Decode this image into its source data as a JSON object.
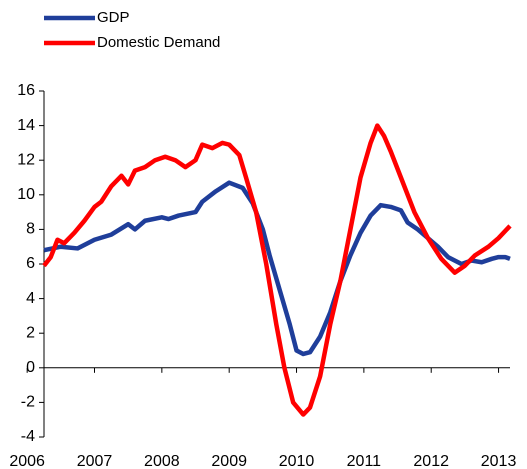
{
  "chart_data": {
    "type": "line",
    "series": [
      {
        "name": "GDP",
        "color": "#1f3e9a",
        "x": [
          2006.25,
          2006.5,
          2006.75,
          2007.0,
          2007.25,
          2007.5,
          2007.6,
          2007.75,
          2008.0,
          2008.1,
          2008.25,
          2008.5,
          2008.6,
          2008.8,
          2009.0,
          2009.2,
          2009.35,
          2009.5,
          2009.6,
          2009.75,
          2009.9,
          2010.0,
          2010.1,
          2010.2,
          2010.35,
          2010.5,
          2010.65,
          2010.8,
          2010.95,
          2011.1,
          2011.25,
          2011.4,
          2011.55,
          2011.65,
          2011.8,
          2011.95,
          2012.1,
          2012.25,
          2012.45,
          2012.6,
          2012.75,
          2012.9,
          2013.0,
          2013.1,
          2013.17
        ],
        "values": [
          6.8,
          7.0,
          6.9,
          7.4,
          7.7,
          8.3,
          8.0,
          8.5,
          8.7,
          8.6,
          8.8,
          9.0,
          9.6,
          10.2,
          10.7,
          10.4,
          9.5,
          8.0,
          6.5,
          4.5,
          2.5,
          1.0,
          0.8,
          0.9,
          1.8,
          3.2,
          5.0,
          6.5,
          7.8,
          8.8,
          9.4,
          9.3,
          9.1,
          8.4,
          8.0,
          7.5,
          7.0,
          6.4,
          6.0,
          6.2,
          6.1,
          6.3,
          6.4,
          6.4,
          6.3
        ]
      },
      {
        "name": "Domestic Demand",
        "color": "#ff0000",
        "x": [
          2006.25,
          2006.35,
          2006.45,
          2006.55,
          2006.7,
          2006.85,
          2007.0,
          2007.1,
          2007.25,
          2007.4,
          2007.5,
          2007.6,
          2007.75,
          2007.9,
          2008.05,
          2008.2,
          2008.35,
          2008.5,
          2008.6,
          2008.75,
          2008.9,
          2009.0,
          2009.15,
          2009.25,
          2009.4,
          2009.55,
          2009.7,
          2009.82,
          2009.95,
          2010.1,
          2010.2,
          2010.35,
          2010.5,
          2010.65,
          2010.8,
          2010.95,
          2011.1,
          2011.2,
          2011.3,
          2011.4,
          2011.55,
          2011.75,
          2011.95,
          2012.15,
          2012.35,
          2012.5,
          2012.65,
          2012.85,
          2013.0,
          2013.17
        ],
        "values": [
          5.9,
          6.4,
          7.4,
          7.2,
          7.8,
          8.5,
          9.3,
          9.6,
          10.5,
          11.1,
          10.6,
          11.4,
          11.6,
          12.0,
          12.2,
          12.0,
          11.6,
          12.0,
          12.9,
          12.7,
          13.0,
          12.9,
          12.3,
          11.0,
          9.0,
          6.0,
          2.5,
          0,
          -2.0,
          -2.7,
          -2.3,
          -0.5,
          2.5,
          5.0,
          8.0,
          11.0,
          13.0,
          14.0,
          13.4,
          12.5,
          11.0,
          9.0,
          7.5,
          6.3,
          5.5,
          5.9,
          6.5,
          7.0,
          7.5,
          8.2
        ]
      }
    ],
    "xlim": [
      2006.25,
      2013.17
    ],
    "xticks": [
      2006,
      2007,
      2008,
      2009,
      2010,
      2011,
      2012,
      2013
    ],
    "ylim": [
      -4,
      16
    ],
    "yticks": [
      -4,
      -2,
      0,
      2,
      4,
      6,
      8,
      10,
      12,
      14,
      16
    ],
    "grid": false,
    "legend": "top-left"
  }
}
